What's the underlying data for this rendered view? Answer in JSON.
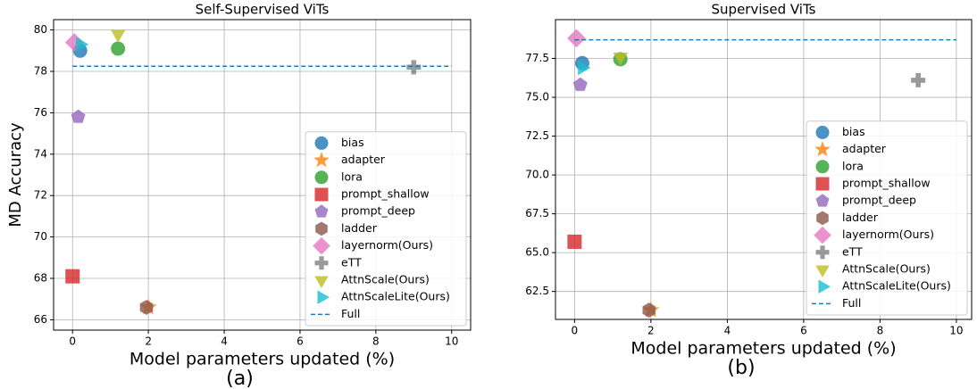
{
  "chart_data": [
    {
      "type": "scatter",
      "title": "Self-Supervised ViTs",
      "xlabel": "Model parameters updated (%)",
      "ylabel": "MD Accuracy",
      "panel_label": "(a)",
      "xlim": [
        -0.5,
        10.5
      ],
      "xticks": [
        0,
        2,
        4,
        6,
        8,
        10
      ],
      "ylim": [
        65.5,
        80.5
      ],
      "yticks": [
        66,
        68,
        70,
        72,
        74,
        76,
        78,
        80
      ],
      "grid": true,
      "legend": "lower right",
      "series": [
        {
          "name": "bias",
          "color": "#1f77b4",
          "marker": "circle",
          "x": [
            0.2
          ],
          "values": [
            79.0
          ]
        },
        {
          "name": "adapter",
          "color": "#ff7f0e",
          "marker": "star",
          "x": [
            2.0
          ],
          "values": [
            66.6
          ]
        },
        {
          "name": "lora",
          "color": "#2ca02c",
          "marker": "circle",
          "x": [
            1.2
          ],
          "values": [
            79.1
          ]
        },
        {
          "name": "prompt_shallow",
          "color": "#d62728",
          "marker": "square",
          "x": [
            0.0
          ],
          "values": [
            68.1
          ]
        },
        {
          "name": "prompt_deep",
          "color": "#9467bd",
          "marker": "pentagon",
          "x": [
            0.15
          ],
          "values": [
            75.8
          ]
        },
        {
          "name": "ladder",
          "color": "#8c564b",
          "marker": "hexagon",
          "x": [
            1.95
          ],
          "values": [
            66.6
          ]
        },
        {
          "name": "layernorm(Ours)",
          "color": "#e377c2",
          "marker": "diamond",
          "x": [
            0.05
          ],
          "values": [
            79.4
          ]
        },
        {
          "name": "eTT",
          "color": "#7f7f7f",
          "marker": "plus",
          "x": [
            9.0
          ],
          "values": [
            78.2
          ]
        },
        {
          "name": "AttnScale(Ours)",
          "color": "#bcbd22",
          "marker": "triangle_down",
          "x": [
            1.2
          ],
          "values": [
            79.8
          ]
        },
        {
          "name": "AttnScaleLite(Ours)",
          "color": "#17becf",
          "marker": "triangle_right",
          "x": [
            0.2
          ],
          "values": [
            79.3
          ]
        },
        {
          "name": "Full",
          "color": "#1f77b4",
          "style": "dashed",
          "x": [
            0,
            10
          ],
          "values": [
            78.25,
            78.25
          ]
        }
      ]
    },
    {
      "type": "scatter",
      "title": "Supervised ViTs",
      "xlabel": "Model parameters updated (%)",
      "panel_label": "(b)",
      "xlim": [
        -0.5,
        10.4
      ],
      "xticks": [
        0,
        2,
        4,
        6,
        8,
        10
      ],
      "ylim": [
        60.7,
        80
      ],
      "yticks": [
        62.5,
        {
          "value": 65,
          "label": "65.0"
        },
        67.5,
        {
          "value": 70,
          "label": "70.0"
        },
        72.5,
        {
          "value": 75,
          "label": "75.0"
        },
        77.5
      ],
      "grid": true,
      "legend": "lower right",
      "series": [
        {
          "name": "bias",
          "color": "#1f77b4",
          "marker": "circle",
          "x": [
            0.2
          ],
          "values": [
            77.2
          ]
        },
        {
          "name": "adapter",
          "color": "#ff7f0e",
          "marker": "star",
          "x": [
            2.0
          ],
          "values": [
            61.3
          ]
        },
        {
          "name": "lora",
          "color": "#2ca02c",
          "marker": "circle",
          "x": [
            1.2
          ],
          "values": [
            77.45
          ]
        },
        {
          "name": "prompt_shallow",
          "color": "#d62728",
          "marker": "square",
          "x": [
            0.0
          ],
          "values": [
            65.7
          ]
        },
        {
          "name": "prompt_deep",
          "color": "#9467bd",
          "marker": "pentagon",
          "x": [
            0.15
          ],
          "values": [
            75.8
          ]
        },
        {
          "name": "ladder",
          "color": "#8c564b",
          "marker": "hexagon",
          "x": [
            1.95
          ],
          "values": [
            61.3
          ]
        },
        {
          "name": "layernorm(Ours)",
          "color": "#e377c2",
          "marker": "diamond",
          "x": [
            0.05
          ],
          "values": [
            78.8
          ]
        },
        {
          "name": "eTT",
          "color": "#7f7f7f",
          "marker": "plus",
          "x": [
            9.0
          ],
          "values": [
            76.1
          ]
        },
        {
          "name": "AttnScale(Ours)",
          "color": "#bcbd22",
          "marker": "triangle_down",
          "x": [
            1.2
          ],
          "values": [
            77.6
          ]
        },
        {
          "name": "AttnScaleLite(Ours)",
          "color": "#17becf",
          "marker": "triangle_right",
          "x": [
            0.2
          ],
          "values": [
            76.9
          ]
        },
        {
          "name": "Full",
          "color": "#1f77b4",
          "style": "dashed",
          "x": [
            0,
            10
          ],
          "values": [
            78.7,
            78.7
          ]
        }
      ]
    }
  ]
}
